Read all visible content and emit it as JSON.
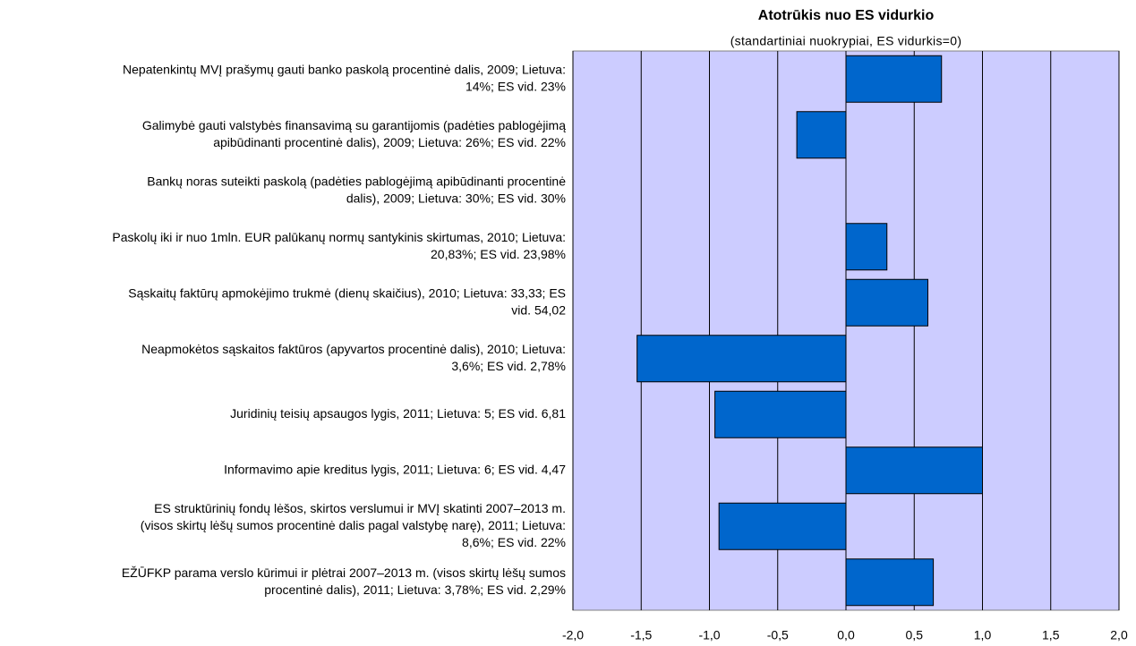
{
  "chart_data": {
    "type": "barh",
    "title": "Atotrūkis nuo ES vidurkio",
    "subtitle": "(standartiniai nuokrypiai, ES vidurkis=0)",
    "categories": [
      [
        "Nepatenkintų MVĮ prašymų gauti banko paskolą procentinė dalis, 2009; Lietuva:",
        "14%; ES vid. 23%"
      ],
      [
        "Galimybė gauti valstybės finansavimą su garantijomis (padėties pablogėjimą",
        "apibūdinanti procentinė dalis), 2009; Lietuva: 26%; ES vid. 22%"
      ],
      [
        "Bankų noras suteikti paskolą (padėties pablogėjimą apibūdinanti procentinė",
        "dalis), 2009; Lietuva: 30%; ES vid. 30%"
      ],
      [
        "Paskolų iki ir nuo 1mln. EUR palūkanų normų santykinis skirtumas, 2010; Lietuva:",
        "20,83%; ES vid. 23,98%"
      ],
      [
        "Sąskaitų faktūrų apmokėjimo trukmė (dienų skaičius), 2010; Lietuva: 33,33; ES",
        "vid. 54,02"
      ],
      [
        "Neapmokėtos sąskaitos faktūros (apyvartos procentinė dalis), 2010; Lietuva:",
        "3,6%; ES vid. 2,78%"
      ],
      [
        "Juridinių teisių apsaugos lygis, 2011; Lietuva: 5; ES vid. 6,81"
      ],
      [
        "Informavimo apie kreditus lygis, 2011; Lietuva: 6; ES vid. 4,47"
      ],
      [
        "ES struktūrinių fondų lėšos, skirtos verslumui ir MVĮ skatinti 2007–2013 m.",
        "(visos skirtų lėšų sumos procentinė dalis pagal valstybę narę), 2011; Lietuva:",
        "8,6%; ES vid. 22%"
      ],
      [
        "EŽŪFKP parama verslo kūrimui ir plėtrai 2007–2013 m. (visos skirtų lėšų sumos",
        "procentinė dalis), 2011; Lietuva: 3,78%; ES vid. 2,29%"
      ]
    ],
    "values": [
      0.7,
      -0.36,
      0,
      0.3,
      0.6,
      -1.53,
      -0.96,
      1.0,
      -0.93,
      0.64
    ],
    "color": "#0066cc",
    "background": "#ccccff",
    "xlim": [
      -2,
      2
    ],
    "xticks": [
      {
        "value": -2,
        "label": "-2,0"
      },
      {
        "value": -1.5,
        "label": "-1,5"
      },
      {
        "value": -1,
        "label": "-1,0"
      },
      {
        "value": -0.5,
        "label": "-0,5"
      },
      {
        "value": 0,
        "label": "0,0"
      },
      {
        "value": 0.5,
        "label": "0,5"
      },
      {
        "value": 1,
        "label": "1,0"
      },
      {
        "value": 1.5,
        "label": "1,5"
      },
      {
        "value": 2,
        "label": "2,0"
      }
    ],
    "grid": true
  }
}
